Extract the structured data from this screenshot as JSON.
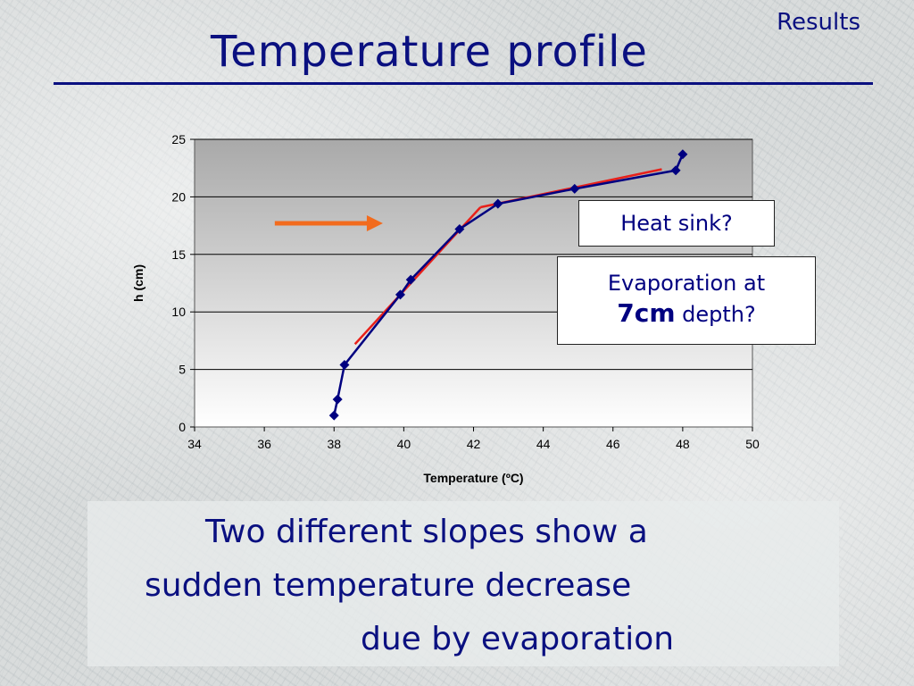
{
  "slide": {
    "section": "Results",
    "title": "Temperature profile"
  },
  "callouts": {
    "heat_sink": "Heat sink?",
    "evap_line1": "Evaporation at",
    "evap_depth": "7cm",
    "evap_line2_rest": " depth?"
  },
  "conclusion": {
    "line1": "Two different slopes show a",
    "line2": "sudden temperature decrease",
    "line3": "due by evaporation"
  },
  "colors": {
    "title_text": "#0a1080",
    "series_line": "#000080",
    "trend_line": "#e8201a",
    "arrow": "#f26b1d"
  },
  "chart_data": {
    "type": "line",
    "xlabel": "Temperature (ºC)",
    "ylabel": "h (cm)",
    "xlim": [
      34,
      50
    ],
    "ylim": [
      0,
      25
    ],
    "x_ticks": [
      34,
      36,
      38,
      40,
      42,
      44,
      46,
      48,
      50
    ],
    "y_ticks": [
      0,
      5,
      10,
      15,
      20,
      25
    ],
    "grid": "horizontal",
    "legend": "none",
    "series": [
      {
        "x": [
          38.0,
          38.1,
          38.3,
          39.9,
          40.2,
          41.6,
          42.7,
          44.9,
          47.8,
          48.0
        ],
        "y": [
          1.0,
          2.4,
          5.4,
          11.5,
          12.8,
          17.2,
          19.4,
          20.7,
          22.3,
          23.7
        ]
      }
    ],
    "trend_lines": [
      {
        "x": [
          38.6,
          42.2
        ],
        "y": [
          7.2,
          19.1
        ]
      },
      {
        "x": [
          42.2,
          47.4
        ],
        "y": [
          19.1,
          22.4
        ]
      }
    ],
    "annotation_arrow": {
      "x": [
        36.3,
        39.4
      ],
      "y": [
        17.7,
        17.7
      ]
    }
  }
}
